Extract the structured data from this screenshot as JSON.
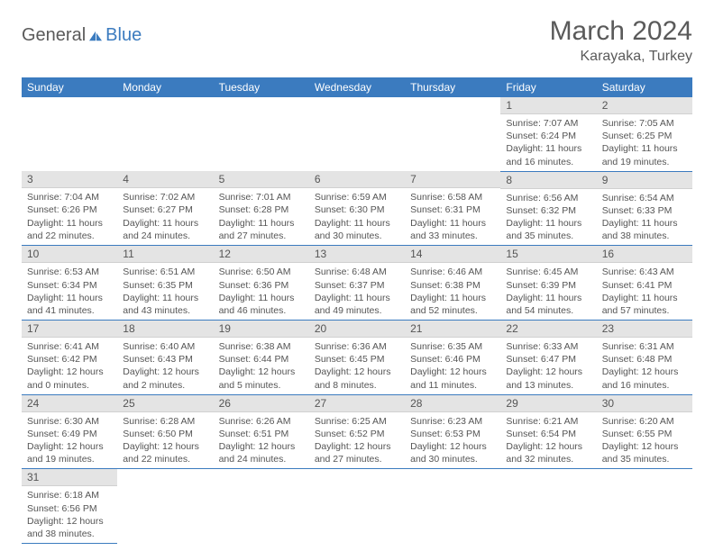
{
  "logo": {
    "part1": "General",
    "part2": "Blue"
  },
  "title": "March 2024",
  "location": "Karayaka, Turkey",
  "colors": {
    "header_bg": "#3b7bbf",
    "header_text": "#ffffff",
    "daynum_bg": "#e4e4e4",
    "text": "#555555",
    "border": "#3b7bbf"
  },
  "weekdays": [
    "Sunday",
    "Monday",
    "Tuesday",
    "Wednesday",
    "Thursday",
    "Friday",
    "Saturday"
  ],
  "weeks": [
    [
      null,
      null,
      null,
      null,
      null,
      {
        "n": "1",
        "sr": "Sunrise: 7:07 AM",
        "ss": "Sunset: 6:24 PM",
        "d1": "Daylight: 11 hours",
        "d2": "and 16 minutes."
      },
      {
        "n": "2",
        "sr": "Sunrise: 7:05 AM",
        "ss": "Sunset: 6:25 PM",
        "d1": "Daylight: 11 hours",
        "d2": "and 19 minutes."
      }
    ],
    [
      {
        "n": "3",
        "sr": "Sunrise: 7:04 AM",
        "ss": "Sunset: 6:26 PM",
        "d1": "Daylight: 11 hours",
        "d2": "and 22 minutes."
      },
      {
        "n": "4",
        "sr": "Sunrise: 7:02 AM",
        "ss": "Sunset: 6:27 PM",
        "d1": "Daylight: 11 hours",
        "d2": "and 24 minutes."
      },
      {
        "n": "5",
        "sr": "Sunrise: 7:01 AM",
        "ss": "Sunset: 6:28 PM",
        "d1": "Daylight: 11 hours",
        "d2": "and 27 minutes."
      },
      {
        "n": "6",
        "sr": "Sunrise: 6:59 AM",
        "ss": "Sunset: 6:30 PM",
        "d1": "Daylight: 11 hours",
        "d2": "and 30 minutes."
      },
      {
        "n": "7",
        "sr": "Sunrise: 6:58 AM",
        "ss": "Sunset: 6:31 PM",
        "d1": "Daylight: 11 hours",
        "d2": "and 33 minutes."
      },
      {
        "n": "8",
        "sr": "Sunrise: 6:56 AM",
        "ss": "Sunset: 6:32 PM",
        "d1": "Daylight: 11 hours",
        "d2": "and 35 minutes."
      },
      {
        "n": "9",
        "sr": "Sunrise: 6:54 AM",
        "ss": "Sunset: 6:33 PM",
        "d1": "Daylight: 11 hours",
        "d2": "and 38 minutes."
      }
    ],
    [
      {
        "n": "10",
        "sr": "Sunrise: 6:53 AM",
        "ss": "Sunset: 6:34 PM",
        "d1": "Daylight: 11 hours",
        "d2": "and 41 minutes."
      },
      {
        "n": "11",
        "sr": "Sunrise: 6:51 AM",
        "ss": "Sunset: 6:35 PM",
        "d1": "Daylight: 11 hours",
        "d2": "and 43 minutes."
      },
      {
        "n": "12",
        "sr": "Sunrise: 6:50 AM",
        "ss": "Sunset: 6:36 PM",
        "d1": "Daylight: 11 hours",
        "d2": "and 46 minutes."
      },
      {
        "n": "13",
        "sr": "Sunrise: 6:48 AM",
        "ss": "Sunset: 6:37 PM",
        "d1": "Daylight: 11 hours",
        "d2": "and 49 minutes."
      },
      {
        "n": "14",
        "sr": "Sunrise: 6:46 AM",
        "ss": "Sunset: 6:38 PM",
        "d1": "Daylight: 11 hours",
        "d2": "and 52 minutes."
      },
      {
        "n": "15",
        "sr": "Sunrise: 6:45 AM",
        "ss": "Sunset: 6:39 PM",
        "d1": "Daylight: 11 hours",
        "d2": "and 54 minutes."
      },
      {
        "n": "16",
        "sr": "Sunrise: 6:43 AM",
        "ss": "Sunset: 6:41 PM",
        "d1": "Daylight: 11 hours",
        "d2": "and 57 minutes."
      }
    ],
    [
      {
        "n": "17",
        "sr": "Sunrise: 6:41 AM",
        "ss": "Sunset: 6:42 PM",
        "d1": "Daylight: 12 hours",
        "d2": "and 0 minutes."
      },
      {
        "n": "18",
        "sr": "Sunrise: 6:40 AM",
        "ss": "Sunset: 6:43 PM",
        "d1": "Daylight: 12 hours",
        "d2": "and 2 minutes."
      },
      {
        "n": "19",
        "sr": "Sunrise: 6:38 AM",
        "ss": "Sunset: 6:44 PM",
        "d1": "Daylight: 12 hours",
        "d2": "and 5 minutes."
      },
      {
        "n": "20",
        "sr": "Sunrise: 6:36 AM",
        "ss": "Sunset: 6:45 PM",
        "d1": "Daylight: 12 hours",
        "d2": "and 8 minutes."
      },
      {
        "n": "21",
        "sr": "Sunrise: 6:35 AM",
        "ss": "Sunset: 6:46 PM",
        "d1": "Daylight: 12 hours",
        "d2": "and 11 minutes."
      },
      {
        "n": "22",
        "sr": "Sunrise: 6:33 AM",
        "ss": "Sunset: 6:47 PM",
        "d1": "Daylight: 12 hours",
        "d2": "and 13 minutes."
      },
      {
        "n": "23",
        "sr": "Sunrise: 6:31 AM",
        "ss": "Sunset: 6:48 PM",
        "d1": "Daylight: 12 hours",
        "d2": "and 16 minutes."
      }
    ],
    [
      {
        "n": "24",
        "sr": "Sunrise: 6:30 AM",
        "ss": "Sunset: 6:49 PM",
        "d1": "Daylight: 12 hours",
        "d2": "and 19 minutes."
      },
      {
        "n": "25",
        "sr": "Sunrise: 6:28 AM",
        "ss": "Sunset: 6:50 PM",
        "d1": "Daylight: 12 hours",
        "d2": "and 22 minutes."
      },
      {
        "n": "26",
        "sr": "Sunrise: 6:26 AM",
        "ss": "Sunset: 6:51 PM",
        "d1": "Daylight: 12 hours",
        "d2": "and 24 minutes."
      },
      {
        "n": "27",
        "sr": "Sunrise: 6:25 AM",
        "ss": "Sunset: 6:52 PM",
        "d1": "Daylight: 12 hours",
        "d2": "and 27 minutes."
      },
      {
        "n": "28",
        "sr": "Sunrise: 6:23 AM",
        "ss": "Sunset: 6:53 PM",
        "d1": "Daylight: 12 hours",
        "d2": "and 30 minutes."
      },
      {
        "n": "29",
        "sr": "Sunrise: 6:21 AM",
        "ss": "Sunset: 6:54 PM",
        "d1": "Daylight: 12 hours",
        "d2": "and 32 minutes."
      },
      {
        "n": "30",
        "sr": "Sunrise: 6:20 AM",
        "ss": "Sunset: 6:55 PM",
        "d1": "Daylight: 12 hours",
        "d2": "and 35 minutes."
      }
    ],
    [
      {
        "n": "31",
        "sr": "Sunrise: 6:18 AM",
        "ss": "Sunset: 6:56 PM",
        "d1": "Daylight: 12 hours",
        "d2": "and 38 minutes."
      },
      null,
      null,
      null,
      null,
      null,
      null
    ]
  ]
}
